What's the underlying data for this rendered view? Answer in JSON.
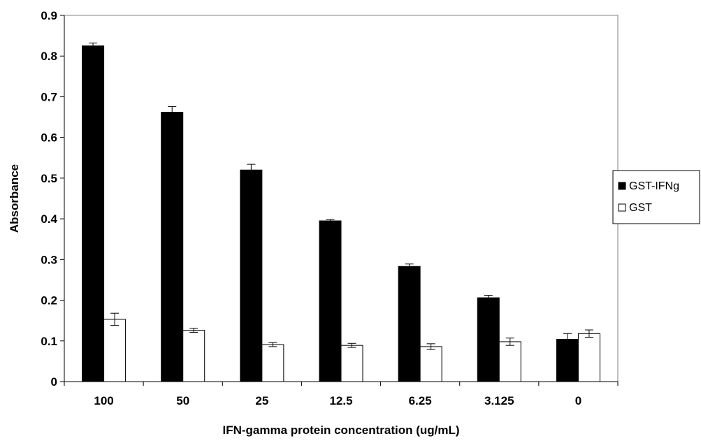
{
  "chart_data": {
    "type": "bar",
    "title": "",
    "xlabel": "IFN-gamma protein concentration (ug/mL)",
    "ylabel": "Absorbance",
    "ylim": [
      0,
      0.9
    ],
    "yticks": [
      "0",
      "0.1",
      "0.2",
      "0.3",
      "0.4",
      "0.5",
      "0.6",
      "0.7",
      "0.8",
      "0.9"
    ],
    "grid": false,
    "legend_position": "right",
    "categories": [
      "100",
      "50",
      "25",
      "12.5",
      "6.25",
      "3.125",
      "0"
    ],
    "series": [
      {
        "name": "GST-IFNg",
        "color": "#000000",
        "values": [
          0.825,
          0.662,
          0.52,
          0.395,
          0.283,
          0.206,
          0.104
        ],
        "errors": [
          0.007,
          0.014,
          0.014,
          0.003,
          0.006,
          0.006,
          0.014
        ]
      },
      {
        "name": "GST",
        "color": "#ffffff",
        "values": [
          0.153,
          0.126,
          0.091,
          0.089,
          0.086,
          0.098,
          0.118
        ],
        "errors": [
          0.015,
          0.005,
          0.005,
          0.005,
          0.007,
          0.009,
          0.009
        ]
      }
    ]
  }
}
